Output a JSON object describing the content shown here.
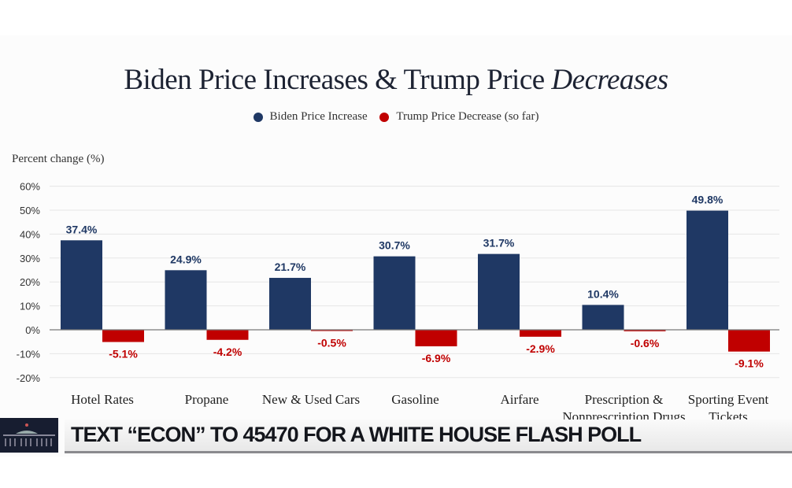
{
  "chart_data": {
    "type": "bar",
    "title_main": "Biden Price Increases & Trump Price ",
    "title_italic": "Decreases",
    "ylabel": "Percent change (%)",
    "ylim": [
      -20,
      60
    ],
    "yticks": [
      "-20%",
      "-10%",
      "0%",
      "10%",
      "20%",
      "30%",
      "40%",
      "50%",
      "60%"
    ],
    "ytick_values": [
      -20,
      -10,
      0,
      10,
      20,
      30,
      40,
      50,
      60
    ],
    "grid": true,
    "legend_placement": "top-center",
    "categories": [
      [
        "Hotel Rates"
      ],
      [
        "Propane"
      ],
      [
        "New & Used Cars"
      ],
      [
        "Gasoline"
      ],
      [
        "Airfare"
      ],
      [
        "Prescription &",
        "Nonprescription Drugs"
      ],
      [
        "Sporting Event",
        "Tickets"
      ]
    ],
    "series": [
      {
        "name": "Biden Price Increase",
        "color": "#1f3864",
        "values": [
          37.4,
          24.9,
          21.7,
          30.7,
          31.7,
          10.4,
          49.8
        ],
        "labels": [
          "37.4%",
          "24.9%",
          "21.7%",
          "30.7%",
          "31.7%",
          "10.4%",
          "49.8%"
        ]
      },
      {
        "name": "Trump Price Decrease (so far)",
        "color": "#c00000",
        "values": [
          -5.1,
          -4.2,
          -0.5,
          -6.9,
          -2.9,
          -0.6,
          -9.1
        ],
        "labels": [
          "-5.1%",
          "-4.2%",
          "-0.5%",
          "-6.9%",
          "-2.9%",
          "-0.6%",
          "-9.1%"
        ]
      }
    ]
  },
  "banner": {
    "text": "TEXT “ECON” TO 45470 FOR A WHITE HOUSE FLASH POLL",
    "logo": "white-house-icon"
  }
}
